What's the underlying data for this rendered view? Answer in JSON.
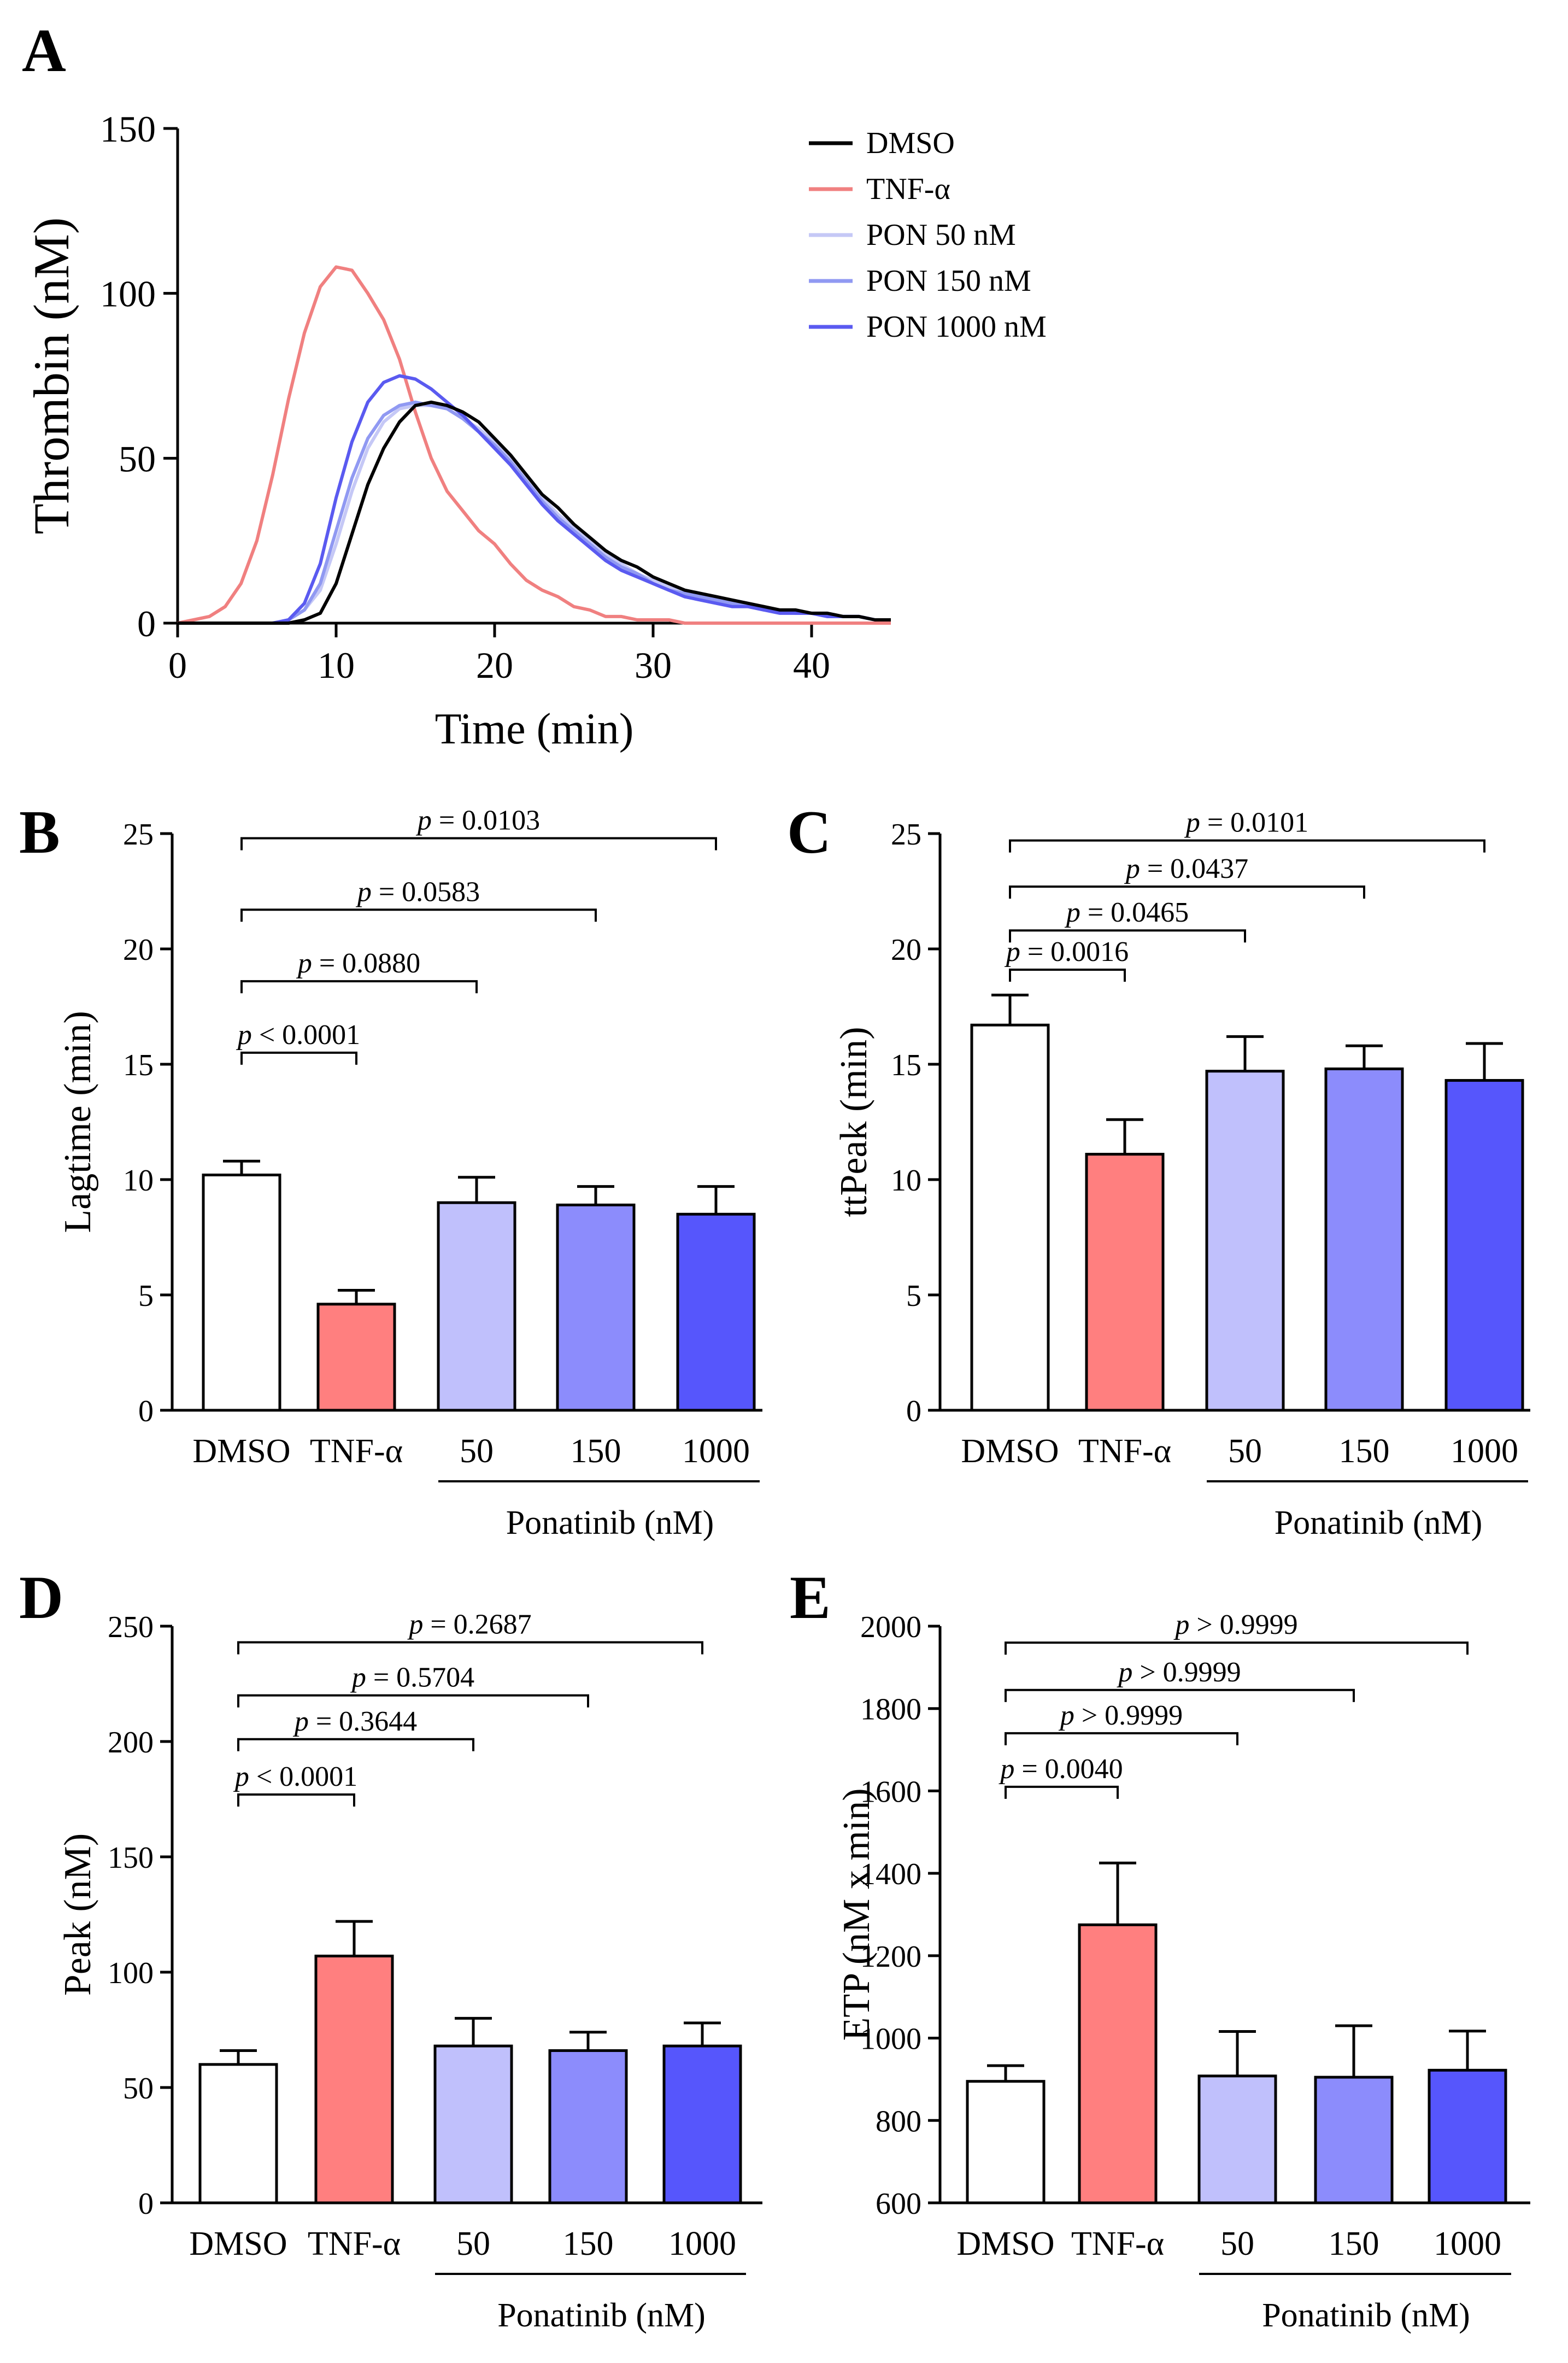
{
  "chart_data": [
    {
      "panel": "A",
      "type": "line",
      "xlabel": "Time (min)",
      "ylabel": "Thrombin (nM)",
      "xlim": [
        0,
        45
      ],
      "ylim": [
        0,
        150
      ],
      "xticks": [
        0,
        10,
        20,
        30,
        40
      ],
      "yticks": [
        0,
        50,
        100,
        150
      ],
      "legend_position": "top-right",
      "series": [
        {
          "name": "DMSO",
          "color": "#000000",
          "x": [
            0,
            5,
            6,
            7,
            8,
            9,
            10,
            11,
            12,
            13,
            14,
            15,
            16,
            17,
            18,
            19,
            20,
            21,
            22,
            23,
            24,
            25,
            26,
            27,
            28,
            29,
            30,
            31,
            32,
            33,
            34,
            35,
            36,
            37,
            38,
            39,
            40,
            41,
            42,
            43,
            44,
            45
          ],
          "y": [
            0,
            0,
            0,
            0,
            1,
            3,
            12,
            27,
            42,
            53,
            61,
            66,
            67,
            66,
            64,
            61,
            56,
            51,
            45,
            39,
            35,
            30,
            26,
            22,
            19,
            17,
            14,
            12,
            10,
            9,
            8,
            7,
            6,
            5,
            4,
            4,
            3,
            3,
            2,
            2,
            1,
            1
          ]
        },
        {
          "name": "TNF-α",
          "color": "#f08080",
          "x": [
            0,
            1,
            2,
            3,
            4,
            5,
            6,
            7,
            8,
            9,
            10,
            11,
            12,
            13,
            14,
            15,
            16,
            17,
            18,
            19,
            20,
            21,
            22,
            23,
            24,
            25,
            26,
            27,
            28,
            29,
            30,
            31,
            32,
            33,
            34,
            35,
            36,
            37,
            38,
            39,
            40,
            41,
            42,
            43,
            44,
            45
          ],
          "y": [
            0,
            1,
            2,
            5,
            12,
            25,
            45,
            68,
            88,
            102,
            108,
            107,
            100,
            92,
            80,
            64,
            50,
            40,
            34,
            28,
            24,
            18,
            13,
            10,
            8,
            5,
            4,
            2,
            2,
            1,
            1,
            1,
            0,
            0,
            0,
            0,
            0,
            0,
            0,
            0,
            0,
            0,
            0,
            0,
            0,
            0
          ]
        },
        {
          "name": "PON 50 nM",
          "color": "#c5c8f6",
          "x": [
            0,
            5,
            6,
            7,
            8,
            9,
            10,
            11,
            12,
            13,
            14,
            15,
            16,
            17,
            18,
            19,
            20,
            21,
            22,
            23,
            24,
            25,
            26,
            27,
            28,
            29,
            30,
            31,
            32,
            33,
            34,
            35,
            36,
            37,
            38,
            39,
            40,
            41,
            42,
            43,
            44,
            45
          ],
          "y": [
            0,
            0,
            0,
            1,
            4,
            10,
            24,
            40,
            53,
            61,
            65,
            66,
            66,
            65,
            62,
            59,
            55,
            50,
            44,
            38,
            33,
            29,
            25,
            21,
            18,
            15,
            13,
            11,
            9,
            8,
            7,
            6,
            5,
            4,
            4,
            3,
            3,
            2,
            2,
            2,
            1,
            1
          ]
        },
        {
          "name": "PON 150 nM",
          "color": "#9099f2",
          "x": [
            0,
            5,
            6,
            7,
            8,
            9,
            10,
            11,
            12,
            13,
            14,
            15,
            16,
            17,
            18,
            19,
            20,
            21,
            22,
            23,
            24,
            25,
            26,
            27,
            28,
            29,
            30,
            31,
            32,
            33,
            34,
            35,
            36,
            37,
            38,
            39,
            40,
            41,
            42,
            43,
            44,
            45
          ],
          "y": [
            0,
            0,
            0,
            1,
            4,
            12,
            28,
            44,
            56,
            63,
            66,
            67,
            66,
            65,
            62,
            58,
            54,
            49,
            43,
            37,
            32,
            28,
            24,
            20,
            17,
            15,
            12,
            10,
            9,
            8,
            7,
            6,
            5,
            4,
            4,
            3,
            3,
            2,
            2,
            2,
            1,
            1
          ]
        },
        {
          "name": "PON 1000 nM",
          "color": "#5a5af0",
          "x": [
            0,
            5,
            6,
            7,
            8,
            9,
            10,
            11,
            12,
            13,
            14,
            15,
            16,
            17,
            18,
            19,
            20,
            21,
            22,
            23,
            24,
            25,
            26,
            27,
            28,
            29,
            30,
            31,
            32,
            33,
            34,
            35,
            36,
            37,
            38,
            39,
            40,
            41,
            42,
            43,
            44,
            45
          ],
          "y": [
            0,
            0,
            0,
            1,
            6,
            18,
            38,
            55,
            67,
            73,
            75,
            74,
            71,
            67,
            63,
            58,
            53,
            48,
            42,
            36,
            31,
            27,
            23,
            19,
            16,
            14,
            12,
            10,
            8,
            7,
            6,
            5,
            5,
            4,
            3,
            3,
            3,
            2,
            2,
            2,
            1,
            1
          ]
        }
      ]
    },
    {
      "panel": "B",
      "type": "bar",
      "ylabel": "Lagtime (min)",
      "ylim": [
        0,
        25
      ],
      "yticks": [
        0,
        5,
        10,
        15,
        20,
        25
      ],
      "categories": [
        "DMSO",
        "TNF-α",
        "50",
        "150",
        "1000"
      ],
      "values": [
        10.2,
        4.6,
        9.0,
        8.9,
        8.5
      ],
      "errors": [
        0.6,
        0.6,
        1.1,
        0.8,
        1.2
      ],
      "colors": [
        "#ffffff",
        "#ff7f7f",
        "#c0c0fc",
        "#8c8cfc",
        "#5656fc"
      ],
      "group_label": "Ponatinib (nM)",
      "comparisons": [
        {
          "to": 1,
          "label_prefix": "p",
          "label_rest": " < 0.0001",
          "y": 15.5
        },
        {
          "to": 2,
          "label_prefix": "p",
          "label_rest": " = 0.0880",
          "y": 18.6
        },
        {
          "to": 3,
          "label_prefix": "p",
          "label_rest": " = 0.0583",
          "y": 21.7
        },
        {
          "to": 4,
          "label_prefix": "p",
          "label_rest": " = 0.0103",
          "y": 24.8
        }
      ]
    },
    {
      "panel": "C",
      "type": "bar",
      "ylabel": "ttPeak (min)",
      "ylim": [
        0,
        25
      ],
      "yticks": [
        0,
        5,
        10,
        15,
        20,
        25
      ],
      "categories": [
        "DMSO",
        "TNF-α",
        "50",
        "150",
        "1000"
      ],
      "values": [
        16.7,
        11.1,
        14.7,
        14.8,
        14.3
      ],
      "errors": [
        1.3,
        1.5,
        1.5,
        1.0,
        1.6
      ],
      "colors": [
        "#ffffff",
        "#ff7f7f",
        "#c0c0fc",
        "#8c8cfc",
        "#5656fc"
      ],
      "group_label": "Ponatinib (nM)",
      "comparisons": [
        {
          "to": 1,
          "label_prefix": "p",
          "label_rest": " = 0.0016",
          "y": 19.1
        },
        {
          "to": 2,
          "label_prefix": "p",
          "label_rest": " = 0.0465",
          "y": 20.8
        },
        {
          "to": 3,
          "label_prefix": "p",
          "label_rest": " = 0.0437",
          "y": 22.7
        },
        {
          "to": 4,
          "label_prefix": "p",
          "label_rest": " = 0.0101",
          "y": 24.7
        }
      ]
    },
    {
      "panel": "D",
      "type": "bar",
      "ylabel": "Peak (nM)",
      "ylim": [
        0,
        250
      ],
      "yticks": [
        0,
        50,
        100,
        150,
        200,
        250
      ],
      "categories": [
        "DMSO",
        "TNF-α",
        "50",
        "150",
        "1000"
      ],
      "values": [
        60,
        107,
        68,
        66,
        68
      ],
      "errors": [
        6,
        15,
        12,
        8,
        10
      ],
      "colors": [
        "#ffffff",
        "#ff7f7f",
        "#c0c0fc",
        "#8c8cfc",
        "#5656fc"
      ],
      "group_label": "Ponatinib (nM)",
      "comparisons": [
        {
          "to": 1,
          "label_prefix": "p",
          "label_rest": " < 0.0001",
          "y": 177
        },
        {
          "to": 2,
          "label_prefix": "p",
          "label_rest": " = 0.3644",
          "y": 201
        },
        {
          "to": 3,
          "label_prefix": "p",
          "label_rest": " = 0.5704",
          "y": 220
        },
        {
          "to": 4,
          "label_prefix": "p",
          "label_rest": " = 0.2687",
          "y": 243
        }
      ]
    },
    {
      "panel": "E",
      "type": "bar",
      "ylabel": "ETP (nM x min)",
      "ylim": [
        600,
        2000
      ],
      "yticks": [
        600,
        800,
        1000,
        1200,
        1400,
        1600,
        1800,
        2000
      ],
      "categories": [
        "DMSO",
        "TNF-α",
        "50",
        "150",
        "1000"
      ],
      "values": [
        895,
        1275,
        908,
        905,
        922
      ],
      "errors": [
        38,
        150,
        108,
        125,
        95
      ],
      "colors": [
        "#ffffff",
        "#ff7f7f",
        "#c0c0fc",
        "#8c8cfc",
        "#5656fc"
      ],
      "group_label": "Ponatinib (nM)",
      "comparisons": [
        {
          "to": 1,
          "label_prefix": "p",
          "label_rest": " = 0.0040",
          "y": 1610
        },
        {
          "to": 2,
          "label_prefix": "p",
          "label_rest": " > 0.9999",
          "y": 1740
        },
        {
          "to": 3,
          "label_prefix": "p",
          "label_rest": " > 0.9999",
          "y": 1845
        },
        {
          "to": 4,
          "label_prefix": "p",
          "label_rest": " > 0.9999",
          "y": 1960
        }
      ]
    }
  ]
}
